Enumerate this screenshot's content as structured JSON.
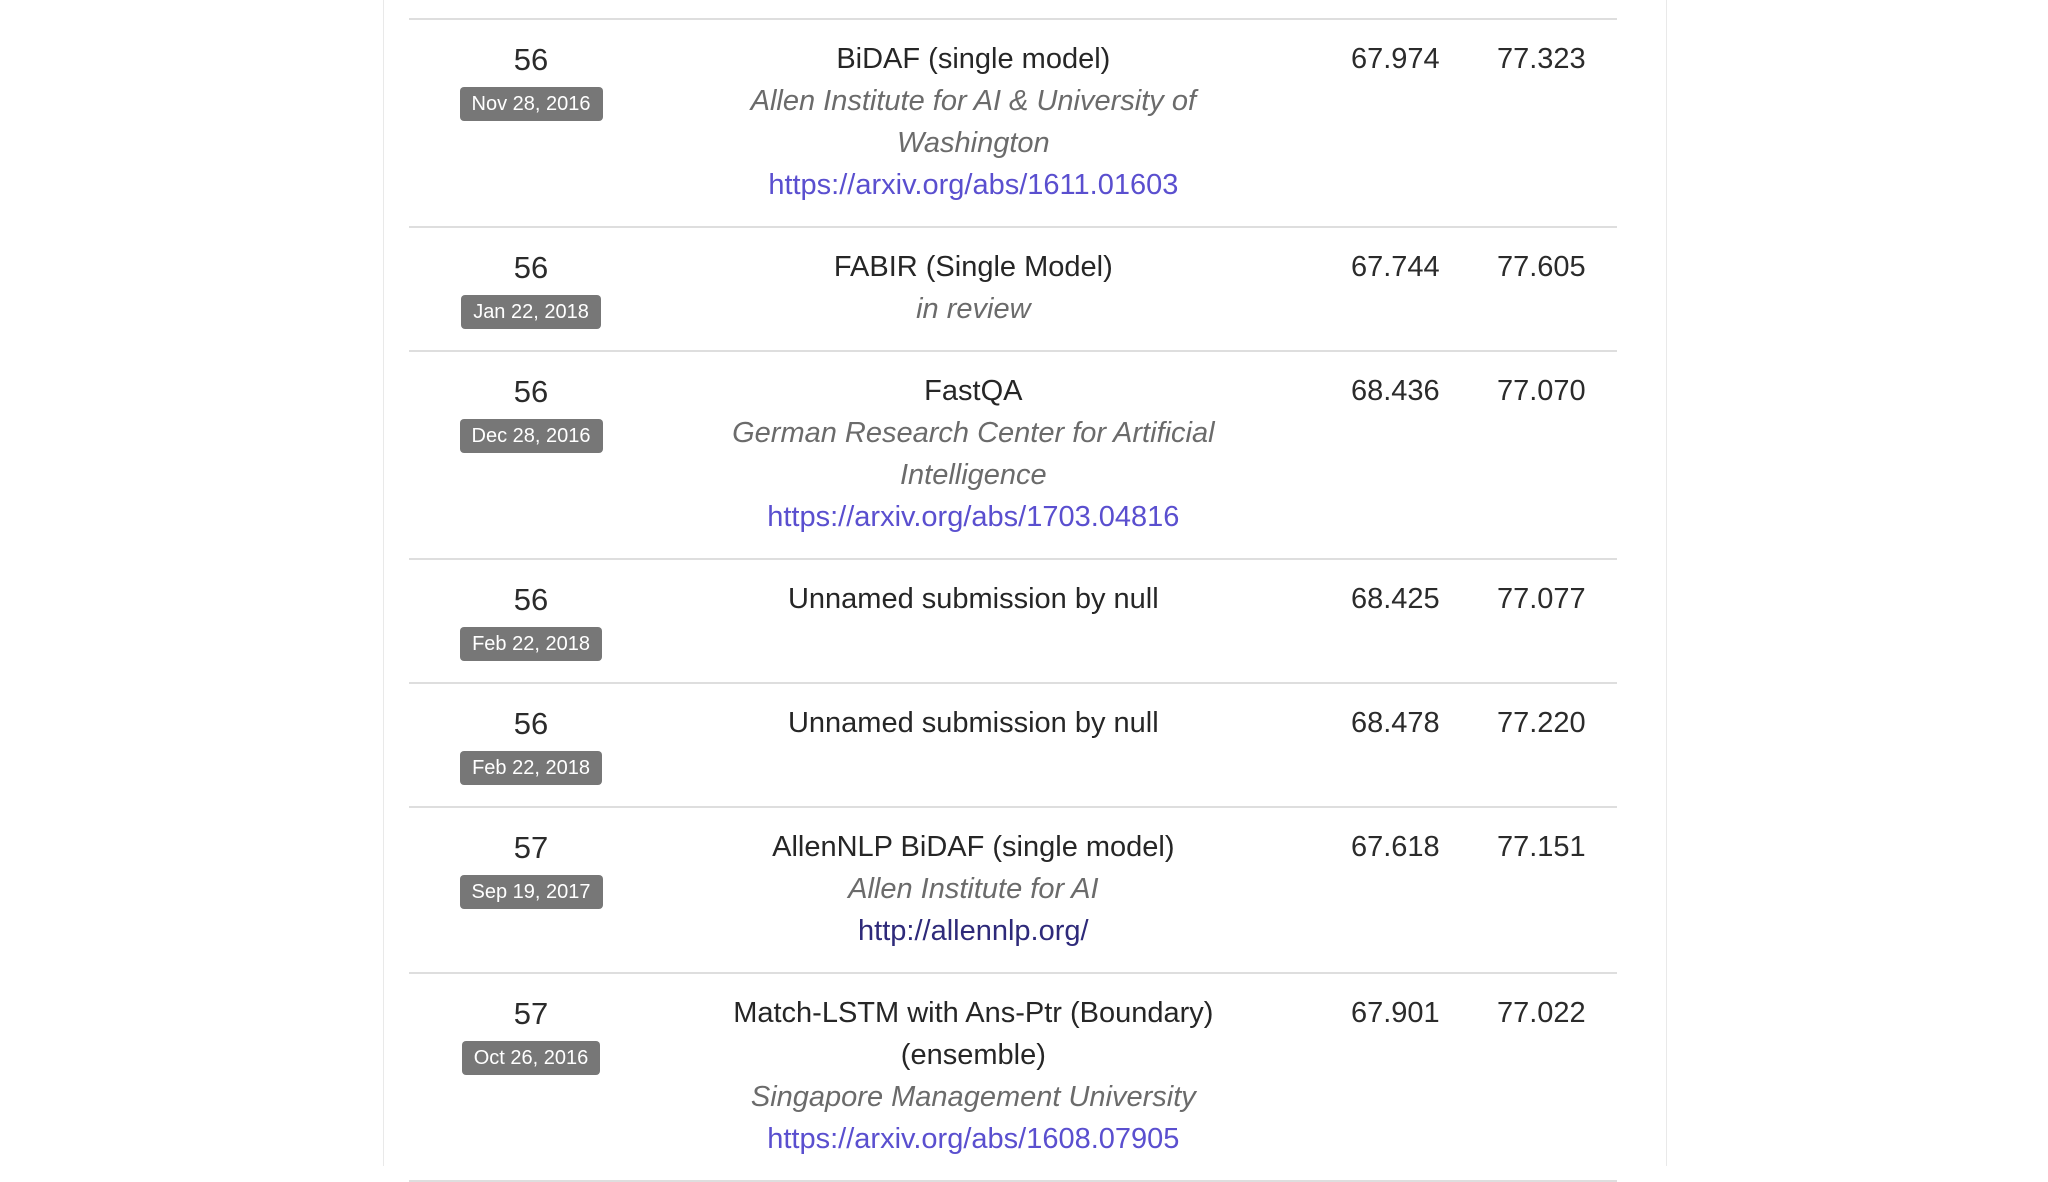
{
  "leaderboard": {
    "rows": [
      {
        "rank": "56",
        "date": "Nov 28, 2016",
        "model": "BiDAF (single model)",
        "org": "Allen Institute for AI & University of Washington",
        "link": "https://arxiv.org/abs/1611.01603",
        "em": "67.974",
        "f1": "77.323"
      },
      {
        "rank": "56",
        "date": "Jan 22, 2018",
        "model": "FABIR (Single Model)",
        "org": "in review",
        "link": "",
        "em": "67.744",
        "f1": "77.605"
      },
      {
        "rank": "56",
        "date": "Dec 28, 2016",
        "model": "FastQA",
        "org": "German Research Center for Artificial Intelligence",
        "link": "https://arxiv.org/abs/1703.04816",
        "em": "68.436",
        "f1": "77.070"
      },
      {
        "rank": "56",
        "date": "Feb 22, 2018",
        "model": "Unnamed submission by null",
        "org": "",
        "link": "",
        "em": "68.425",
        "f1": "77.077"
      },
      {
        "rank": "56",
        "date": "Feb 22, 2018",
        "model": "Unnamed submission by null",
        "org": "",
        "link": "",
        "em": "68.478",
        "f1": "77.220"
      },
      {
        "rank": "57",
        "date": "Sep 19, 2017",
        "model": "AllenNLP BiDAF (single model)",
        "org": "Allen Institute for AI",
        "link": "http://allennlp.org/",
        "em": "67.618",
        "f1": "77.151"
      },
      {
        "rank": "57",
        "date": "Oct 26, 2016",
        "model": "Match-LSTM with Ans-Ptr (Boundary) (ensemble)",
        "org": "Singapore Management University",
        "link": "https://arxiv.org/abs/1608.07905",
        "em": "67.901",
        "f1": "77.022"
      }
    ]
  },
  "colors": {
    "badge_bg": "#777777",
    "link": "#5a4fcf",
    "link_visited": "#2e2a7a",
    "divider": "#dedede"
  }
}
